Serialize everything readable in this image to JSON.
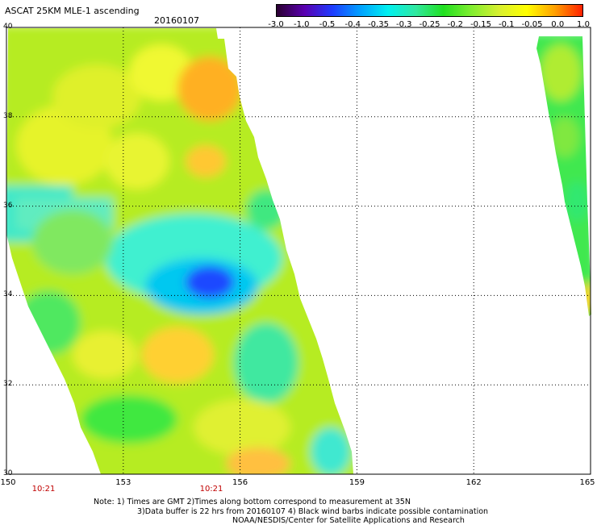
{
  "header": {
    "title": "ASCAT 25KM MLE-1 ascending",
    "date": "20160107"
  },
  "colorbar": {
    "ticks": [
      "-3.0",
      "-1.0",
      "-0.5",
      "-0.4",
      "-0.35",
      "-0.3",
      "-0.25",
      "-0.2",
      "-0.15",
      "-0.1",
      "-0.05",
      "0.0",
      "1.0"
    ],
    "colors": [
      "#2a0030",
      "#5a00b0",
      "#1e3cff",
      "#00a0ff",
      "#00f0f0",
      "#30e8a0",
      "#20e020",
      "#80ee30",
      "#d8f030",
      "#ffff00",
      "#ffa000",
      "#ff2000"
    ]
  },
  "map": {
    "lat_labels": [
      "40",
      "38",
      "36",
      "34",
      "32",
      "30"
    ],
    "lon_labels": [
      "150",
      "153",
      "156",
      "159",
      "162",
      "165"
    ],
    "time_labels": [
      "10:21",
      "10:21"
    ],
    "lon_range": [
      150,
      165
    ],
    "lat_range": [
      30,
      40
    ]
  },
  "footer": {
    "line1": "Note: 1) Times are GMT 2)Times along bottom correspond to measurement at 35N",
    "line2": "3)Data buffer is 22 hrs from 20160107 4) Black wind barbs indicate possible contamination",
    "line3": "NOAA/NESDIS/Center for Satellite Applications and Research"
  }
}
